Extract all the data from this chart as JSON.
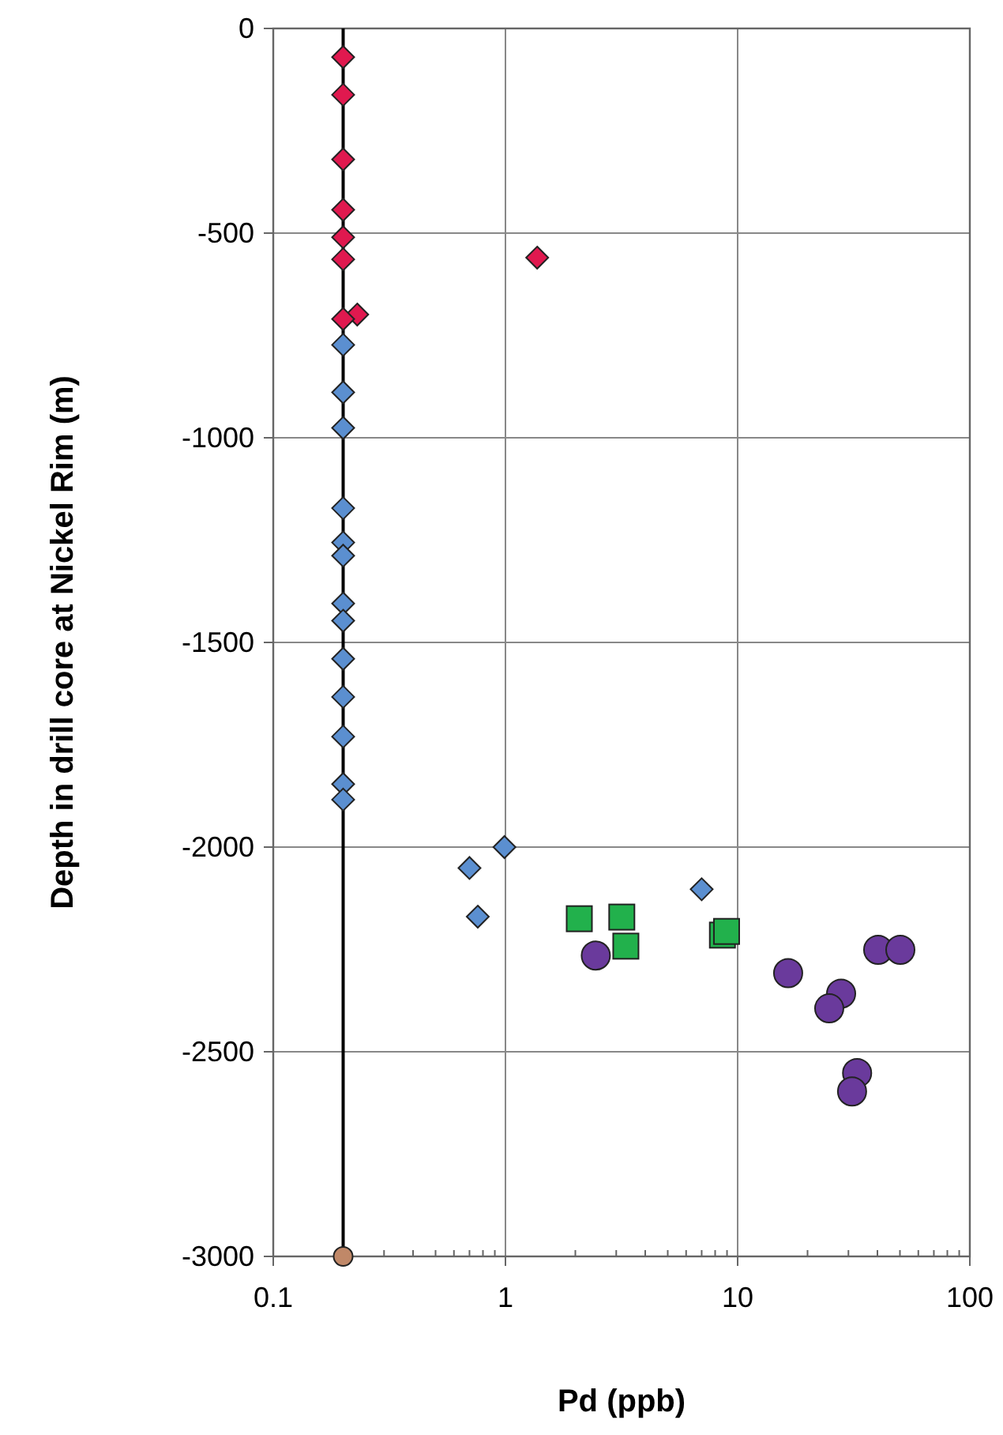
{
  "chart_data": {
    "type": "scatter",
    "xlabel": "Pd (ppb)",
    "ylabel": "Depth in drill core at Nickel Rim (m)",
    "log": "x",
    "xlim": [
      0.1,
      100
    ],
    "xticks": [
      0.1,
      1,
      10,
      100
    ],
    "ylim": [
      -3000,
      0
    ],
    "yticks": [
      0,
      -500,
      -1000,
      -1500,
      -2000,
      -2500,
      -3000
    ],
    "grid": true,
    "series": [
      {
        "type": "line",
        "color": "#000000",
        "marker": "none",
        "line_style": "solid",
        "x": [
          0.2,
          0.2
        ],
        "values": [
          0,
          -3000
        ]
      },
      {
        "color": "#e0194f",
        "marker": "diamond",
        "x": [
          0.2,
          0.2,
          0.2,
          0.2,
          0.2,
          0.2,
          0.23,
          0.2,
          1.37
        ],
        "values": [
          -70,
          -162,
          -320,
          -443,
          -510,
          -564,
          -699,
          -710,
          -560
        ]
      },
      {
        "color": "#5b8fd0",
        "marker": "diamond",
        "x": [
          0.2,
          0.2,
          0.2,
          0.2,
          0.2,
          0.2,
          0.2,
          0.2,
          0.2,
          0.2,
          0.2,
          0.2,
          0.2,
          0.99,
          0.7,
          0.76,
          7.0
        ],
        "values": [
          -773,
          -889,
          -976,
          -1172,
          -1256,
          -1288,
          -1405,
          -1447,
          -1540,
          -1633,
          -1730,
          -1846,
          -1884,
          -2000,
          -2051,
          -2170,
          -2103
        ]
      },
      {
        "color": "#22b14c",
        "marker": "square",
        "x": [
          2.08,
          3.17,
          3.3,
          8.6,
          8.96
        ],
        "values": [
          -2175,
          -2171,
          -2242,
          -2215,
          -2206
        ]
      },
      {
        "color": "#6a3a9c",
        "marker": "circle",
        "x": [
          2.45,
          16.5,
          27.9,
          24.8,
          40.3,
          50.2,
          32.7,
          31.1
        ],
        "values": [
          -2265,
          -2308,
          -2358,
          -2394,
          -2251,
          -2251,
          -2552,
          -2597
        ]
      },
      {
        "color": "#c08868",
        "marker": "circle",
        "x": [
          0.2
        ],
        "values": [
          -3000
        ]
      }
    ]
  }
}
